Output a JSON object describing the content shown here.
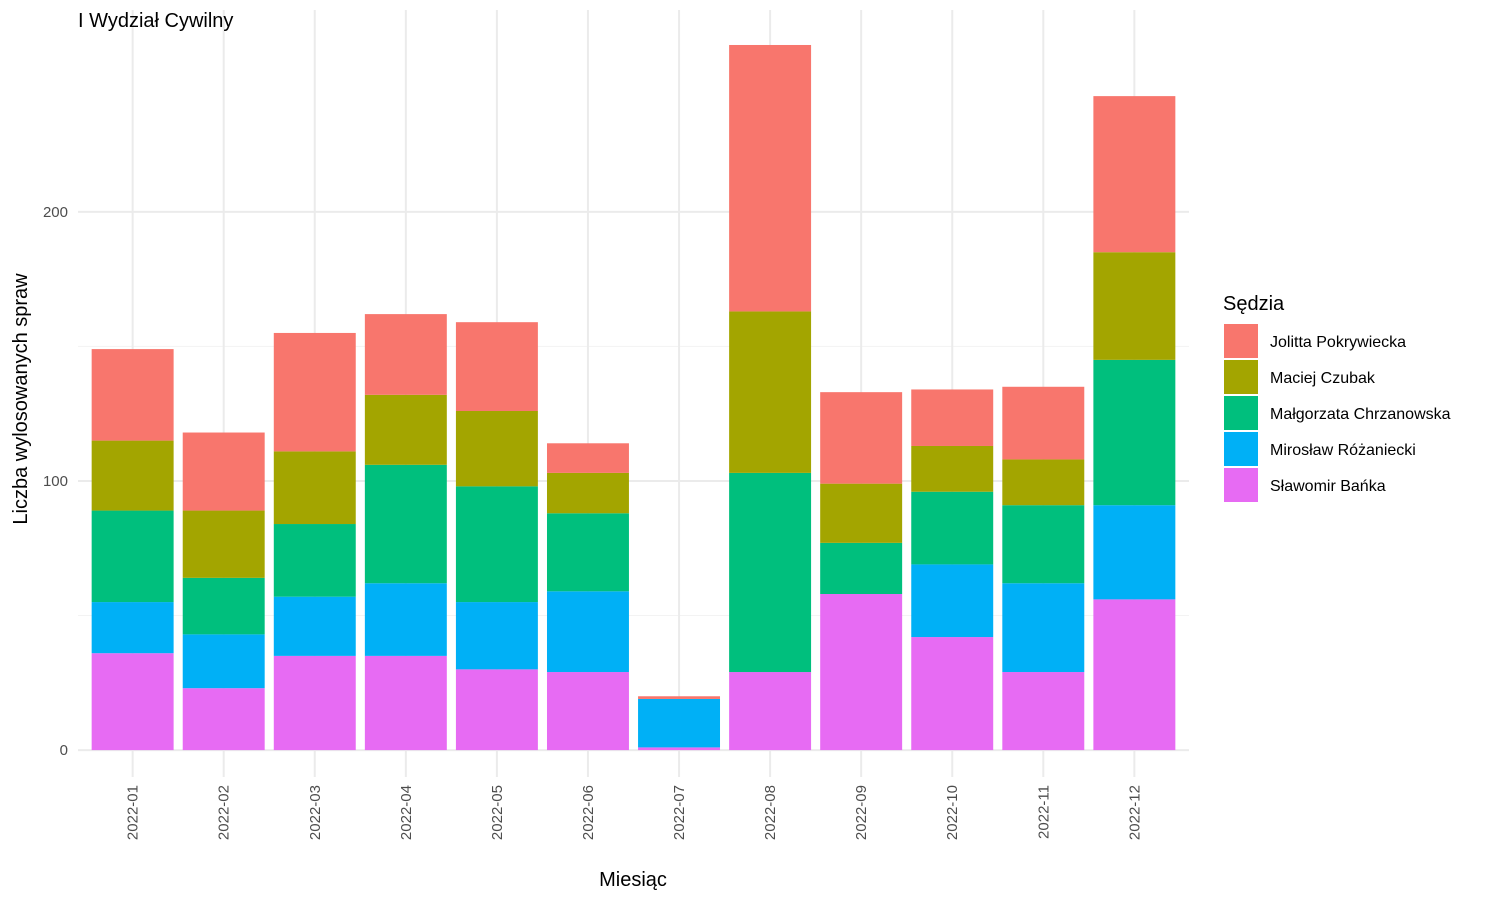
{
  "chart_data": {
    "type": "bar",
    "stacked": true,
    "title": "I Wydział Cywilny",
    "xlabel": "Miesiąc",
    "ylabel": "Liczba wylosowanych spraw",
    "ylim": [
      -10,
      275
    ],
    "y_ticks": [
      0,
      100,
      200
    ],
    "grid": true,
    "legend_position": "right",
    "legend_title": "Sędzia",
    "categories": [
      "2022-01",
      "2022-02",
      "2022-03",
      "2022-04",
      "2022-05",
      "2022-06",
      "2022-07",
      "2022-08",
      "2022-09",
      "2022-10",
      "2022-11",
      "2022-12"
    ],
    "series": [
      {
        "name": "Sławomir Bańka",
        "color": "#E76BF3",
        "values": [
          36,
          23,
          35,
          35,
          30,
          29,
          1,
          29,
          58,
          42,
          29,
          56
        ]
      },
      {
        "name": "Mirosław Różaniecki",
        "color": "#00B0F6",
        "values": [
          19,
          20,
          22,
          27,
          25,
          30,
          18,
          0,
          0,
          27,
          33,
          35
        ]
      },
      {
        "name": "Małgorzata Chrzanowska",
        "color": "#00BF7D",
        "values": [
          34,
          21,
          27,
          44,
          43,
          29,
          0,
          74,
          19,
          27,
          29,
          54
        ]
      },
      {
        "name": "Maciej Czubak",
        "color": "#A3A500",
        "values": [
          26,
          25,
          27,
          26,
          28,
          15,
          0,
          60,
          22,
          17,
          17,
          40
        ]
      },
      {
        "name": "Jolitta Pokrywiecka",
        "color": "#F8766D",
        "values": [
          34,
          29,
          44,
          30,
          33,
          11,
          1,
          99,
          34,
          21,
          27,
          58
        ]
      }
    ],
    "legend_order": [
      "Jolitta Pokrywiecka",
      "Maciej Czubak",
      "Małgorzata Chrzanowska",
      "Mirosław Różaniecki",
      "Sławomir Bańka"
    ]
  }
}
